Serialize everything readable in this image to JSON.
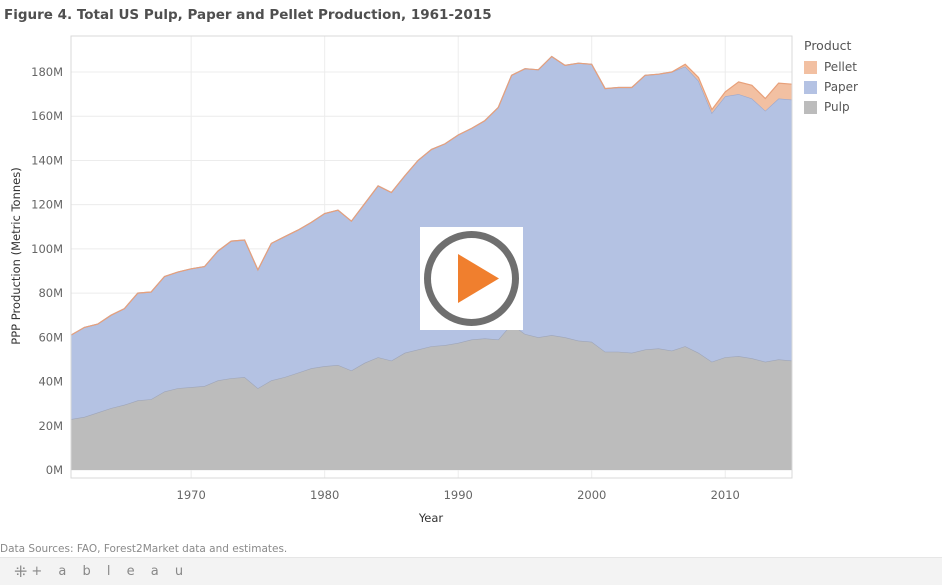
{
  "title": "Figure 4. Total US Pulp, Paper and Pellet Production, 1961-2015",
  "source": "Data Sources: FAO, Forest2Market data and estimates.",
  "footer": {
    "logo_icon": "tableau-logo-icon",
    "logo_text": "+ a b l e a u",
    "logo_mark": "⁜"
  },
  "legend": {
    "title": "Product",
    "items": [
      {
        "label": "Pellet",
        "color": "#f2c0a2"
      },
      {
        "label": "Paper",
        "color": "#b4c2e3"
      },
      {
        "label": "Pulp",
        "color": "#bcbcbc"
      }
    ]
  },
  "play_button": {
    "icon": "play-icon",
    "ring_color": "#6f6f6f",
    "triangle_color": "#f07f2e"
  },
  "chart_data": {
    "type": "area",
    "stacked": true,
    "title": "Figure 4. Total US Pulp, Paper and Pellet Production, 1961-2015",
    "xlabel": "Year",
    "ylabel": "PPP Production (Metric Tonnes)",
    "xlim": [
      1961,
      2015
    ],
    "ylim": [
      0,
      190
    ],
    "y_unit": "M",
    "grid": true,
    "legend_position": "right",
    "xticks": [
      1970,
      1980,
      1990,
      2000,
      2010
    ],
    "xtick_labels": [
      "1970",
      "1980",
      "1990",
      "2000",
      "2010"
    ],
    "yticks": [
      0,
      20,
      40,
      60,
      80,
      100,
      120,
      140,
      160,
      180
    ],
    "ytick_labels": [
      "0M",
      "20M",
      "40M",
      "60M",
      "80M",
      "100M",
      "120M",
      "140M",
      "160M",
      "180M"
    ],
    "x": [
      1961,
      1962,
      1963,
      1964,
      1965,
      1966,
      1967,
      1968,
      1969,
      1970,
      1971,
      1972,
      1973,
      1974,
      1975,
      1976,
      1977,
      1978,
      1979,
      1980,
      1981,
      1982,
      1983,
      1984,
      1985,
      1986,
      1987,
      1988,
      1989,
      1990,
      1991,
      1992,
      1993,
      1994,
      1995,
      1996,
      1997,
      1998,
      1999,
      2000,
      2001,
      2002,
      2003,
      2004,
      2005,
      2006,
      2007,
      2008,
      2009,
      2010,
      2011,
      2012,
      2013,
      2014,
      2015
    ],
    "series": [
      {
        "name": "Pulp",
        "color": "#bcbcbc",
        "values": [
          23,
          24,
          26,
          28,
          29.5,
          31.5,
          32,
          35.5,
          37,
          37.5,
          38,
          40.5,
          41.5,
          42,
          37,
          40.5,
          42,
          44,
          46,
          47,
          47.5,
          45,
          48.5,
          51,
          49.5,
          53,
          54.5,
          56,
          56.5,
          57.5,
          59,
          59.5,
          59,
          66,
          61.5,
          60,
          61,
          60,
          58.5,
          58,
          53.5,
          53.5,
          53,
          54.5,
          55,
          54,
          56,
          53,
          49,
          51,
          51.5,
          50.5,
          49,
          50,
          49.5
        ]
      },
      {
        "name": "Paper",
        "color": "#b4c2e3",
        "values": [
          38,
          40.5,
          40,
          42,
          43.5,
          48.5,
          48.5,
          52,
          52.5,
          53.5,
          54,
          58.5,
          62,
          62,
          53.5,
          62,
          63.5,
          64.5,
          66,
          69,
          70,
          67.5,
          72,
          77.5,
          76,
          80,
          85.5,
          89,
          91,
          94,
          95.5,
          98.5,
          105,
          112.5,
          120,
          121,
          126,
          123,
          125.5,
          125.5,
          119,
          119.5,
          120,
          124,
          124,
          126,
          126.5,
          123,
          112.5,
          118,
          118.5,
          117.5,
          113.5,
          118,
          118
        ]
      },
      {
        "name": "Pellet",
        "color": "#f2c0a2",
        "values": [
          0,
          0,
          0,
          0,
          0,
          0,
          0,
          0,
          0,
          0,
          0,
          0,
          0,
          0,
          0,
          0,
          0,
          0,
          0,
          0,
          0,
          0,
          0,
          0,
          0,
          0,
          0,
          0,
          0,
          0,
          0,
          0,
          0,
          0,
          0,
          0,
          0,
          0,
          0,
          0,
          0,
          0,
          0,
          0,
          0,
          0,
          1,
          1.5,
          1.5,
          2,
          5.5,
          6,
          5.5,
          7,
          7
        ]
      }
    ]
  }
}
